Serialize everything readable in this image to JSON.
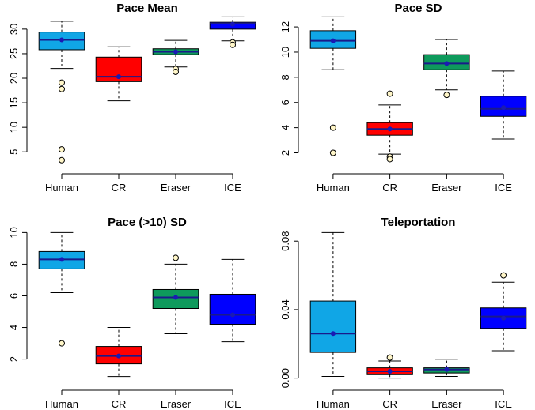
{
  "colors": {
    "Human": "#10a6e6",
    "CR": "#ff0000",
    "Eraser": "#0e9a5c",
    "ICE": "#0000ff",
    "mean_point": "#1a1ab4",
    "outlier_fill": "#fff6c8",
    "median_line": "#1a1a8a"
  },
  "chart_data": [
    {
      "type": "box",
      "title": "Pace Mean",
      "categories": [
        "Human",
        "CR",
        "Eraser",
        "ICE"
      ],
      "yticks": [
        5,
        10,
        15,
        20,
        25,
        30
      ],
      "ylim": [
        3.0,
        32.5
      ],
      "boxes": [
        {
          "name": "Human",
          "whisker_low": 22.0,
          "q1": 25.8,
          "median": 27.8,
          "q3": 29.4,
          "whisker_high": 31.6,
          "mean": 27.8,
          "outliers": [
            19.1,
            17.8,
            5.5,
            3.3
          ]
        },
        {
          "name": "CR",
          "whisker_low": 15.4,
          "q1": 19.3,
          "median": 20.3,
          "q3": 24.3,
          "whisker_high": 26.4,
          "mean": 20.3,
          "outliers": []
        },
        {
          "name": "Eraser",
          "whisker_low": 22.3,
          "q1": 24.8,
          "median": 25.4,
          "q3": 26.0,
          "whisker_high": 27.7,
          "mean": 25.4,
          "outliers": [
            21.9,
            21.3
          ]
        },
        {
          "name": "ICE",
          "whisker_low": 27.6,
          "q1": 30.0,
          "median": 31.2,
          "q3": 31.4,
          "whisker_high": 32.5,
          "mean": 31.0,
          "outliers": [
            27.3,
            26.8
          ]
        }
      ]
    },
    {
      "type": "box",
      "title": "Pace SD",
      "categories": [
        "Human",
        "CR",
        "Eraser",
        "ICE"
      ],
      "yticks": [
        2,
        4,
        6,
        8,
        10,
        12
      ],
      "ylim": [
        1.3,
        12.8
      ],
      "boxes": [
        {
          "name": "Human",
          "whisker_low": 8.6,
          "q1": 10.3,
          "median": 10.9,
          "q3": 11.7,
          "whisker_high": 12.8,
          "mean": 10.9,
          "outliers": [
            4.0,
            2.0
          ]
        },
        {
          "name": "CR",
          "whisker_low": 1.9,
          "q1": 3.4,
          "median": 3.9,
          "q3": 4.4,
          "whisker_high": 5.8,
          "mean": 3.9,
          "outliers": [
            6.7,
            1.7,
            1.5
          ]
        },
        {
          "name": "Eraser",
          "whisker_low": 7.0,
          "q1": 8.6,
          "median": 9.1,
          "q3": 9.8,
          "whisker_high": 11.0,
          "mean": 9.1,
          "outliers": [
            6.6
          ]
        },
        {
          "name": "ICE",
          "whisker_low": 3.1,
          "q1": 4.9,
          "median": 5.5,
          "q3": 6.5,
          "whisker_high": 8.5,
          "mean": 5.6,
          "outliers": []
        }
      ]
    },
    {
      "type": "box",
      "title": "Pace (>10) SD",
      "categories": [
        "Human",
        "CR",
        "Eraser",
        "ICE"
      ],
      "yticks": [
        2,
        4,
        6,
        8,
        10
      ],
      "ylim": [
        0.8,
        10.0
      ],
      "boxes": [
        {
          "name": "Human",
          "whisker_low": 6.2,
          "q1": 7.7,
          "median": 8.3,
          "q3": 8.8,
          "whisker_high": 10.0,
          "mean": 8.3,
          "outliers": [
            3.0
          ]
        },
        {
          "name": "CR",
          "whisker_low": 0.9,
          "q1": 1.7,
          "median": 2.2,
          "q3": 2.8,
          "whisker_high": 4.0,
          "mean": 2.2,
          "outliers": []
        },
        {
          "name": "Eraser",
          "whisker_low": 3.6,
          "q1": 5.2,
          "median": 5.9,
          "q3": 6.4,
          "whisker_high": 8.0,
          "mean": 5.9,
          "outliers": [
            8.4
          ]
        },
        {
          "name": "ICE",
          "whisker_low": 3.1,
          "q1": 4.2,
          "median": 4.8,
          "q3": 6.1,
          "whisker_high": 8.3,
          "mean": 4.8,
          "outliers": []
        }
      ]
    },
    {
      "type": "box",
      "title": "Teleportation",
      "categories": [
        "Human",
        "CR",
        "Eraser",
        "ICE"
      ],
      "yticks": [
        0.0,
        0.04,
        0.08
      ],
      "ytick_labels": [
        "0.00",
        "0.04",
        "0.08"
      ],
      "ylim": [
        0.0,
        0.085
      ],
      "boxes": [
        {
          "name": "Human",
          "whisker_low": 0.001,
          "q1": 0.015,
          "median": 0.026,
          "q3": 0.045,
          "whisker_high": 0.085,
          "mean": 0.026,
          "outliers": []
        },
        {
          "name": "CR",
          "whisker_low": 0.0,
          "q1": 0.002,
          "median": 0.004,
          "q3": 0.006,
          "whisker_high": 0.01,
          "mean": 0.004,
          "outliers": [
            0.012
          ]
        },
        {
          "name": "Eraser",
          "whisker_low": 0.001,
          "q1": 0.003,
          "median": 0.005,
          "q3": 0.006,
          "whisker_high": 0.011,
          "mean": 0.005,
          "outliers": []
        },
        {
          "name": "ICE",
          "whisker_low": 0.016,
          "q1": 0.029,
          "median": 0.036,
          "q3": 0.041,
          "whisker_high": 0.056,
          "mean": 0.035,
          "outliers": [
            0.06
          ]
        }
      ]
    }
  ]
}
